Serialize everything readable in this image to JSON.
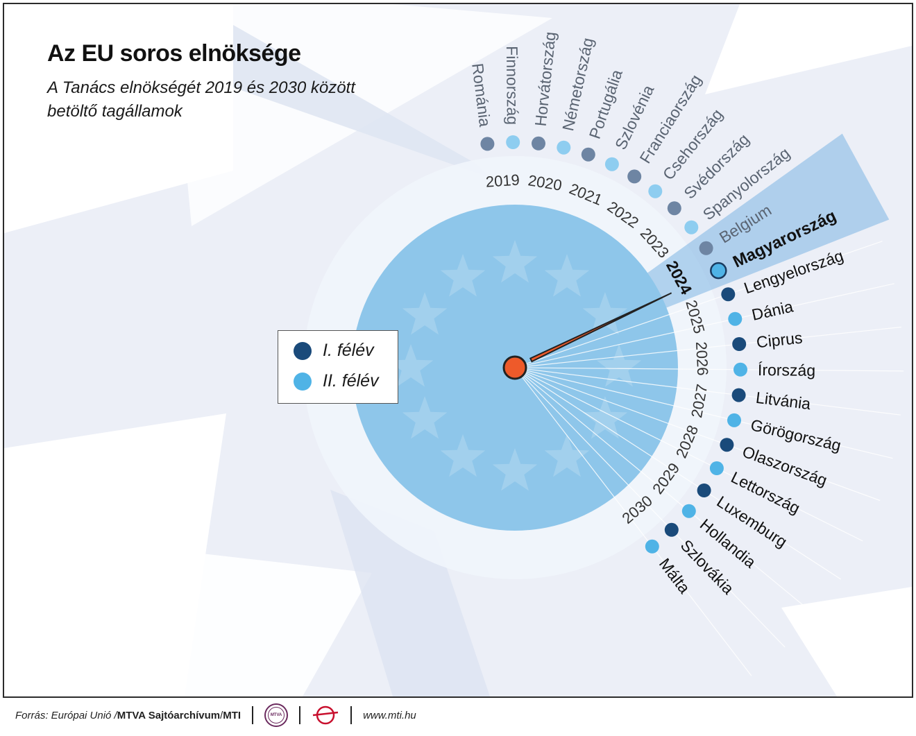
{
  "title": "Az EU soros elnöksége",
  "subtitle": "A Tanács elnökségét 2019 és 2030 között betöltő tagállamok",
  "legend": {
    "first_half": {
      "label": "I. félév",
      "color": "#1a4a7a"
    },
    "second_half": {
      "label": "II. félév",
      "color": "#4fb3e6"
    }
  },
  "colors": {
    "past_first": "#6e85a3",
    "past_second": "#8ecdf0",
    "disc": "#8ec6ea",
    "ring": "#f1f6fc",
    "pointer": "#ee5a2a",
    "highlight_band": "#7db4e4"
  },
  "highlight": {
    "year": "2024",
    "country": "Magyarország"
  },
  "years": [
    "2019",
    "2020",
    "2021",
    "2022",
    "2023",
    "2024",
    "2025",
    "2026",
    "2027",
    "2028",
    "2029",
    "2030"
  ],
  "presidencies": [
    {
      "country": "Románia",
      "year": "2019",
      "half": 1,
      "status": "past"
    },
    {
      "country": "Finnország",
      "year": "2019",
      "half": 2,
      "status": "past"
    },
    {
      "country": "Horvátország",
      "year": "2020",
      "half": 1,
      "status": "past"
    },
    {
      "country": "Németország",
      "year": "2020",
      "half": 2,
      "status": "past"
    },
    {
      "country": "Portugália",
      "year": "2021",
      "half": 1,
      "status": "past"
    },
    {
      "country": "Szlovénia",
      "year": "2021",
      "half": 2,
      "status": "past"
    },
    {
      "country": "Franciaország",
      "year": "2022",
      "half": 1,
      "status": "past"
    },
    {
      "country": "Csehország",
      "year": "2022",
      "half": 2,
      "status": "past"
    },
    {
      "country": "Svédország",
      "year": "2023",
      "half": 1,
      "status": "past"
    },
    {
      "country": "Spanyolország",
      "year": "2023",
      "half": 2,
      "status": "past"
    },
    {
      "country": "Belgium",
      "year": "2024",
      "half": 1,
      "status": "past"
    },
    {
      "country": "Magyarország",
      "year": "2024",
      "half": 2,
      "status": "current"
    },
    {
      "country": "Lengyelország",
      "year": "2025",
      "half": 1,
      "status": "future"
    },
    {
      "country": "Dánia",
      "year": "2025",
      "half": 2,
      "status": "future"
    },
    {
      "country": "Ciprus",
      "year": "2026",
      "half": 1,
      "status": "future"
    },
    {
      "country": "Írország",
      "year": "2026",
      "half": 2,
      "status": "future"
    },
    {
      "country": "Litvánia",
      "year": "2027",
      "half": 1,
      "status": "future"
    },
    {
      "country": "Görögország",
      "year": "2027",
      "half": 2,
      "status": "future"
    },
    {
      "country": "Olaszország",
      "year": "2028",
      "half": 1,
      "status": "future"
    },
    {
      "country": "Lettország",
      "year": "2028",
      "half": 2,
      "status": "future"
    },
    {
      "country": "Luxemburg",
      "year": "2029",
      "half": 1,
      "status": "future"
    },
    {
      "country": "Hollandia",
      "year": "2029",
      "half": 2,
      "status": "future"
    },
    {
      "country": "Szlovákia",
      "year": "2030",
      "half": 1,
      "status": "future"
    },
    {
      "country": "Málta",
      "year": "2030",
      "half": 2,
      "status": "future"
    }
  ],
  "footer": {
    "source_prefix": "Forrás: Európai Unió / ",
    "source_bold": "MTVA Sajtóarchívum",
    "source_sep": " / ",
    "source_mti": "MTI",
    "logo_text": "MTVA",
    "url": "www.mti.hu"
  }
}
